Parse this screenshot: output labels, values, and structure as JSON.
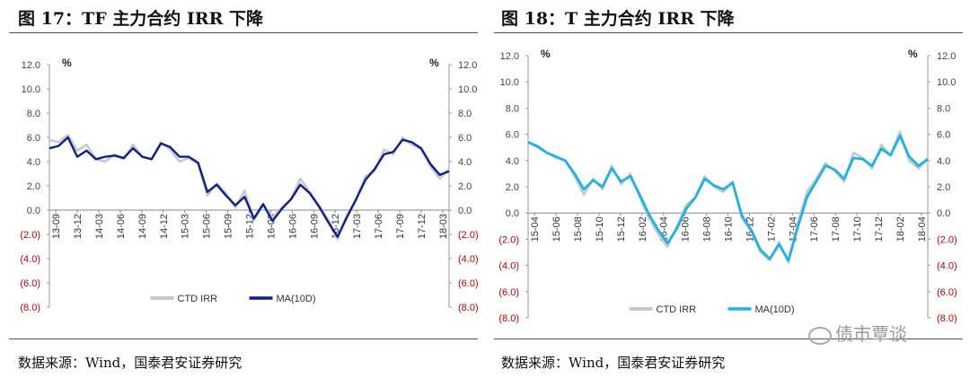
{
  "figures": [
    {
      "title": "图 17：TF 主力合约 IRR 下降",
      "source": "数据来源：Wind，国泰君安证券研究"
    },
    {
      "title": "图 18：T 主力合约 IRR 下降",
      "source": "数据来源：Wind，国泰君安证券研究"
    }
  ],
  "watermark": "债市覃谈",
  "colors": {
    "negative_tick": "#c00000",
    "raw_series": "#c8c8c8"
  },
  "chart_data": [
    {
      "type": "line",
      "unit_left": "%",
      "unit_right": "%",
      "ylim": [
        -8,
        12
      ],
      "yticks": [
        12,
        10,
        8,
        6,
        4,
        2,
        0,
        -2,
        -4,
        -6,
        -8
      ],
      "ytick_labels": [
        "12.0",
        "10.0",
        "8.0",
        "6.0",
        "4.0",
        "2.0",
        "0.0",
        "(2.0)",
        "(4.0)",
        "(6.0)",
        "(8.0)"
      ],
      "x_labels": [
        "13-09",
        "13-12",
        "14-03",
        "14-06",
        "14-09",
        "14-12",
        "15-03",
        "15-06",
        "15-09",
        "15-12",
        "16-03",
        "16-06",
        "16-09",
        "16-12",
        "17-03",
        "17-06",
        "17-09",
        "17-12",
        "18-03"
      ],
      "legend_position": "bottom-center",
      "series": [
        {
          "name": "CTD IRR",
          "color": "#c8c8c8",
          "values": [
            5.8,
            5.6,
            6.2,
            4.9,
            5.4,
            4.2,
            4.0,
            4.6,
            4.2,
            5.4,
            4.4,
            4.2,
            5.6,
            5.0,
            4.0,
            4.3,
            3.8,
            1.2,
            2.2,
            1.4,
            0.2,
            1.6,
            -0.8,
            0.4,
            -0.6,
            0.2,
            0.9,
            2.6,
            1.5,
            0.4,
            -0.8,
            -2.4,
            -0.4,
            0.8,
            2.8,
            3.2,
            5.0,
            4.6,
            6.0,
            5.4,
            5.0,
            3.6,
            2.6,
            3.4
          ]
        },
        {
          "name": "MA(10D)",
          "color": "#0d1f8c",
          "values": [
            5.1,
            5.3,
            6.0,
            4.4,
            4.9,
            4.2,
            4.4,
            4.5,
            4.3,
            5.1,
            4.4,
            4.2,
            5.5,
            5.2,
            4.4,
            4.4,
            3.9,
            1.5,
            2.1,
            1.2,
            0.4,
            1.1,
            -0.7,
            0.5,
            -0.9,
            0.1,
            0.9,
            2.1,
            1.4,
            0.3,
            -1.0,
            -2.2,
            -0.6,
            0.9,
            2.5,
            3.4,
            4.6,
            4.8,
            5.8,
            5.6,
            5.1,
            3.8,
            2.9,
            3.2
          ]
        }
      ]
    },
    {
      "type": "line",
      "unit_left": "%",
      "unit_right": "%",
      "ylim": [
        -8,
        12
      ],
      "yticks": [
        12,
        10,
        8,
        6,
        4,
        2,
        0,
        -2,
        -4,
        -6,
        -8
      ],
      "ytick_labels": [
        "12.0",
        "10.0",
        "8.0",
        "6.0",
        "4.0",
        "2.0",
        "0.0",
        "(2.0)",
        "(4.0)",
        "(6.0)",
        "(8.0)"
      ],
      "x_labels": [
        "15-04",
        "15-06",
        "15-08",
        "15-10",
        "15-12",
        "16-02",
        "16-04",
        "16-06",
        "16-08",
        "16-10",
        "16-12",
        "17-02",
        "17-04",
        "17-06",
        "17-08",
        "17-10",
        "17-12",
        "18-02",
        "18-04"
      ],
      "legend_position": "bottom-center",
      "series": [
        {
          "name": "CTD IRR",
          "color": "#c8c8c8",
          "values": [
            5.4,
            5.0,
            4.6,
            4.2,
            4.0,
            2.8,
            1.4,
            2.6,
            1.8,
            3.6,
            2.2,
            3.0,
            1.2,
            -0.4,
            -1.6,
            -2.6,
            -1.0,
            0.6,
            1.2,
            2.8,
            2.0,
            1.6,
            2.4,
            -0.4,
            -1.4,
            -3.0,
            -3.6,
            -2.2,
            -3.8,
            -0.8,
            1.6,
            2.6,
            3.8,
            3.2,
            2.4,
            4.6,
            4.2,
            3.4,
            5.2,
            4.4,
            6.2,
            4.0,
            3.4,
            4.2
          ]
        },
        {
          "name": "MA(10D)",
          "color": "#1fb2e6",
          "values": [
            5.4,
            5.1,
            4.6,
            4.3,
            4.0,
            3.0,
            1.8,
            2.5,
            2.0,
            3.4,
            2.4,
            2.8,
            1.4,
            -0.1,
            -1.3,
            -2.3,
            -1.2,
            0.3,
            1.2,
            2.6,
            2.1,
            1.8,
            2.3,
            -0.2,
            -1.3,
            -2.8,
            -3.5,
            -2.4,
            -3.6,
            -1.1,
            1.2,
            2.4,
            3.6,
            3.3,
            2.6,
            4.2,
            4.1,
            3.6,
            4.9,
            4.4,
            5.9,
            4.3,
            3.6,
            4.1
          ]
        }
      ]
    }
  ]
}
